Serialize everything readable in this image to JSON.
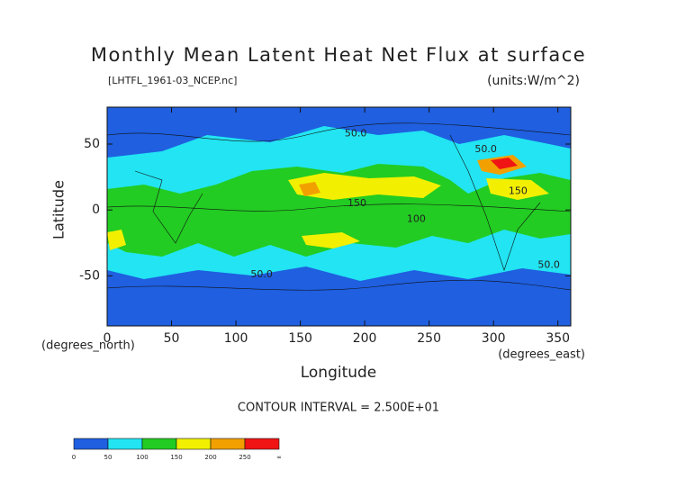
{
  "chart_data": {
    "type": "contour-map",
    "title": "Monthly Mean Latent Heat Net Flux at surface",
    "subtitle": "[LHTFL_1961-03_NCEP.nc]",
    "units": "(units:W/m^2)",
    "xlabel": "Longitude",
    "ylabel": "Latitude",
    "xunit": "(degrees_east)",
    "yunit": "(degrees_north)",
    "xlim": [
      0,
      360
    ],
    "ylim": [
      -88,
      78
    ],
    "xticks": [
      0,
      50,
      100,
      150,
      200,
      250,
      300,
      350
    ],
    "yticks": [
      -50,
      0,
      50
    ],
    "footnote": "CONTOUR INTERVAL = 2.500E+01",
    "contour_labels": [
      {
        "text": "50.0",
        "x": 120,
        "y": -49
      },
      {
        "text": "50.0",
        "x": 343,
        "y": -42
      },
      {
        "text": "150",
        "x": 319,
        "y": 14
      },
      {
        "text": "100",
        "x": 240,
        "y": -7
      },
      {
        "text": "150",
        "x": 194,
        "y": 5
      },
      {
        "text": "50.0",
        "x": 193,
        "y": 58
      },
      {
        "text": "50.0",
        "x": 294,
        "y": 46
      }
    ],
    "colorbar": {
      "levels": [
        0,
        50,
        100,
        150,
        200,
        250
      ],
      "overflow_label": "∞",
      "colors": [
        "#1f5fe0",
        "#22e4f2",
        "#22cc22",
        "#f2f000",
        "#f2a000",
        "#f01414"
      ]
    }
  }
}
